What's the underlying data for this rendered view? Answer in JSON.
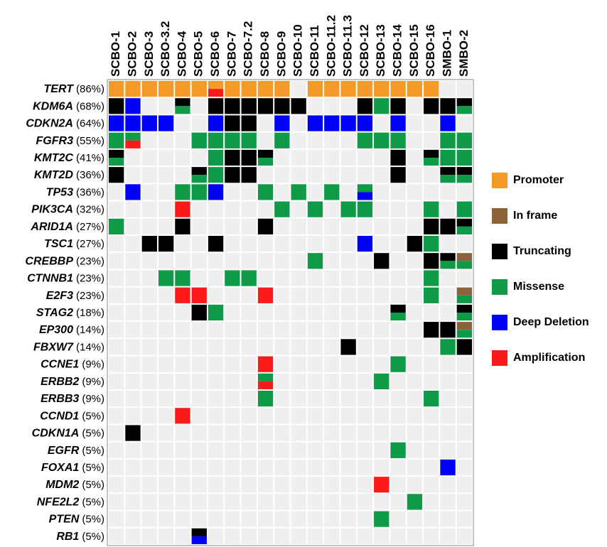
{
  "chart_data": {
    "type": "oncoprint",
    "samples": [
      "SCBO-1",
      "SCBO-2",
      "SCBO-3",
      "SCBO-3.2",
      "SCBO-4",
      "SCBO-5",
      "SCBO-6",
      "SCBO-7",
      "SCBO-7.2",
      "SCBO-8",
      "SCBO-9",
      "SCBO-10",
      "SCBO-11",
      "SCBO-11.2",
      "SCBO-11.3",
      "SCBO-12",
      "SCBO-13",
      "SCBO-14",
      "SCBO-15",
      "SCBO-16",
      "SMBO-1",
      "SMBO-2"
    ],
    "legend": [
      {
        "name": "Promoter",
        "color": "#f39b26"
      },
      {
        "name": "In frame",
        "color": "#8c6239"
      },
      {
        "name": "Truncating",
        "color": "#000000"
      },
      {
        "name": "Missense",
        "color": "#0f9a48"
      },
      {
        "name": "Deep Deletion",
        "color": "#0000ff"
      },
      {
        "name": "Amplification",
        "color": "#ff1a1a"
      }
    ],
    "genes": [
      {
        "name": "TERT",
        "percent": "(86%)",
        "cells": [
          [
            0
          ],
          [
            0
          ],
          [
            0
          ],
          [
            0
          ],
          [
            0
          ],
          [
            0
          ],
          [
            0,
            5
          ],
          [
            0
          ],
          [
            0
          ],
          [
            0
          ],
          [
            0
          ],
          [],
          [
            0
          ],
          [
            0
          ],
          [
            0
          ],
          [
            0
          ],
          [
            0
          ],
          [
            0
          ],
          [
            0
          ],
          [
            0
          ],
          [],
          []
        ]
      },
      {
        "name": "KDM6A",
        "percent": "(68%)",
        "cells": [
          [
            2
          ],
          [
            4
          ],
          [],
          [],
          [
            2,
            3
          ],
          [],
          [
            2
          ],
          [
            2
          ],
          [
            2
          ],
          [
            2
          ],
          [
            2
          ],
          [
            2
          ],
          [],
          [],
          [],
          [
            2
          ],
          [
            3
          ],
          [
            2
          ],
          [],
          [
            2
          ],
          [
            2
          ],
          [
            2,
            3
          ]
        ]
      },
      {
        "name": "CDKN2A",
        "percent": "(64%)",
        "cells": [
          [
            4
          ],
          [
            4
          ],
          [
            4
          ],
          [
            4
          ],
          [],
          [],
          [
            4
          ],
          [
            2
          ],
          [
            2
          ],
          [],
          [
            4
          ],
          [],
          [
            4
          ],
          [
            4
          ],
          [
            4
          ],
          [
            4
          ],
          [],
          [
            4
          ],
          [],
          [],
          [
            4
          ],
          []
        ]
      },
      {
        "name": "FGFR3",
        "percent": "(55%)",
        "cells": [
          [
            3
          ],
          [
            3,
            5
          ],
          [],
          [],
          [],
          [
            3
          ],
          [
            3
          ],
          [
            3
          ],
          [
            3
          ],
          [],
          [
            3
          ],
          [],
          [],
          [],
          [],
          [
            3
          ],
          [
            3
          ],
          [
            3
          ],
          [],
          [],
          [
            3
          ],
          [
            3
          ]
        ]
      },
      {
        "name": "KMT2C",
        "percent": "(41%)",
        "cells": [
          [
            2,
            3
          ],
          [],
          [],
          [],
          [],
          [],
          [
            3
          ],
          [
            2
          ],
          [
            2
          ],
          [
            2,
            3
          ],
          [],
          [],
          [],
          [],
          [],
          [],
          [],
          [
            2
          ],
          [],
          [
            2,
            3
          ],
          [
            3
          ],
          [
            3
          ]
        ]
      },
      {
        "name": "KMT2D",
        "percent": "(36%)",
        "cells": [
          [
            2
          ],
          [],
          [],
          [],
          [],
          [
            2,
            3
          ],
          [
            3
          ],
          [
            2
          ],
          [
            2
          ],
          [],
          [],
          [],
          [],
          [],
          [],
          [],
          [],
          [
            2
          ],
          [],
          [],
          [
            2,
            3
          ],
          [
            2,
            3
          ]
        ]
      },
      {
        "name": "TP53",
        "percent": "(36%)",
        "cells": [
          [],
          [
            4
          ],
          [],
          [],
          [
            3
          ],
          [
            3
          ],
          [
            4
          ],
          [],
          [],
          [
            3
          ],
          [],
          [
            3
          ],
          [],
          [
            3
          ],
          [],
          [
            3,
            4
          ],
          [],
          [],
          [],
          [],
          [],
          []
        ]
      },
      {
        "name": "PIK3CA",
        "percent": "(32%)",
        "cells": [
          [],
          [],
          [],
          [],
          [
            5
          ],
          [],
          [],
          [],
          [],
          [],
          [
            3
          ],
          [],
          [
            3
          ],
          [],
          [
            3
          ],
          [
            3
          ],
          [],
          [],
          [],
          [
            3
          ],
          [],
          [
            3
          ]
        ]
      },
      {
        "name": "ARID1A",
        "percent": "(27%)",
        "cells": [
          [
            3
          ],
          [],
          [],
          [],
          [
            2
          ],
          [],
          [],
          [],
          [],
          [
            2
          ],
          [],
          [],
          [],
          [],
          [],
          [],
          [],
          [],
          [],
          [
            2
          ],
          [
            2
          ],
          [
            2,
            3
          ]
        ]
      },
      {
        "name": "TSC1",
        "percent": "(27%)",
        "cells": [
          [],
          [],
          [
            2
          ],
          [
            2
          ],
          [],
          [],
          [
            2
          ],
          [],
          [],
          [],
          [],
          [],
          [],
          [],
          [],
          [
            4
          ],
          [],
          [],
          [
            2
          ],
          [
            3
          ],
          [],
          []
        ]
      },
      {
        "name": "CREBBP",
        "percent": "(23%)",
        "cells": [
          [],
          [],
          [],
          [],
          [],
          [],
          [],
          [],
          [],
          [],
          [],
          [],
          [
            3
          ],
          [],
          [],
          [],
          [
            2
          ],
          [],
          [],
          [
            2
          ],
          [
            2,
            3
          ],
          [
            1,
            3
          ]
        ]
      },
      {
        "name": "CTNNB1",
        "percent": "(23%)",
        "cells": [
          [],
          [],
          [],
          [
            3
          ],
          [
            3
          ],
          [],
          [],
          [
            3
          ],
          [
            3
          ],
          [],
          [],
          [],
          [],
          [],
          [],
          [],
          [],
          [],
          [],
          [
            3
          ],
          [],
          []
        ]
      },
      {
        "name": "E2F3",
        "percent": "(23%)",
        "cells": [
          [],
          [],
          [],
          [],
          [
            5
          ],
          [
            5
          ],
          [],
          [],
          [],
          [
            5
          ],
          [],
          [],
          [],
          [],
          [],
          [],
          [],
          [],
          [],
          [
            3
          ],
          [],
          [
            1,
            3
          ]
        ]
      },
      {
        "name": "STAG2",
        "percent": "(18%)",
        "cells": [
          [],
          [],
          [],
          [],
          [],
          [
            2
          ],
          [
            3
          ],
          [],
          [],
          [],
          [],
          [],
          [],
          [],
          [],
          [],
          [],
          [
            2,
            3
          ],
          [],
          [],
          [],
          [
            2,
            3
          ]
        ]
      },
      {
        "name": "EP300",
        "percent": "(14%)",
        "cells": [
          [],
          [],
          [],
          [],
          [],
          [],
          [],
          [],
          [],
          [],
          [],
          [],
          [],
          [],
          [],
          [],
          [],
          [],
          [],
          [
            2
          ],
          [
            2
          ],
          [
            1,
            3
          ]
        ]
      },
      {
        "name": "FBXW7",
        "percent": "(14%)",
        "cells": [
          [],
          [],
          [],
          [],
          [],
          [],
          [],
          [],
          [],
          [],
          [],
          [],
          [],
          [],
          [
            2
          ],
          [],
          [],
          [],
          [],
          [],
          [
            3
          ],
          [
            2
          ]
        ]
      },
      {
        "name": "CCNE1",
        "percent": "(9%)",
        "cells": [
          [],
          [],
          [],
          [],
          [],
          [],
          [],
          [],
          [],
          [
            5
          ],
          [],
          [],
          [],
          [],
          [],
          [],
          [],
          [
            3
          ],
          [],
          [],
          [],
          []
        ]
      },
      {
        "name": "ERBB2",
        "percent": "(9%)",
        "cells": [
          [],
          [],
          [],
          [],
          [],
          [],
          [],
          [],
          [],
          [
            3,
            5
          ],
          [],
          [],
          [],
          [],
          [],
          [],
          [
            3
          ],
          [],
          [],
          [],
          [],
          []
        ]
      },
      {
        "name": "ERBB3",
        "percent": "(9%)",
        "cells": [
          [],
          [],
          [],
          [],
          [],
          [],
          [],
          [],
          [],
          [
            3
          ],
          [],
          [],
          [],
          [],
          [],
          [],
          [],
          [],
          [],
          [
            3
          ],
          [],
          []
        ]
      },
      {
        "name": "CCND1",
        "percent": "(5%)",
        "cells": [
          [],
          [],
          [],
          [],
          [
            5
          ],
          [],
          [],
          [],
          [],
          [],
          [],
          [],
          [],
          [],
          [],
          [],
          [],
          [],
          [],
          [],
          [],
          []
        ]
      },
      {
        "name": "CDKN1A",
        "percent": "(5%)",
        "cells": [
          [],
          [
            2
          ],
          [],
          [],
          [],
          [],
          [],
          [],
          [],
          [],
          [],
          [],
          [],
          [],
          [],
          [],
          [],
          [],
          [],
          [],
          [],
          []
        ]
      },
      {
        "name": "EGFR",
        "percent": "(5%)",
        "cells": [
          [],
          [],
          [],
          [],
          [],
          [],
          [],
          [],
          [],
          [],
          [],
          [],
          [],
          [],
          [],
          [],
          [],
          [
            3
          ],
          [],
          [],
          [],
          []
        ]
      },
      {
        "name": "FOXA1",
        "percent": "(5%)",
        "cells": [
          [],
          [],
          [],
          [],
          [],
          [],
          [],
          [],
          [],
          [],
          [],
          [],
          [],
          [],
          [],
          [],
          [],
          [],
          [],
          [],
          [
            4
          ],
          []
        ]
      },
      {
        "name": "MDM2",
        "percent": "(5%)",
        "cells": [
          [],
          [],
          [],
          [],
          [],
          [],
          [],
          [],
          [],
          [],
          [],
          [],
          [],
          [],
          [],
          [],
          [
            5
          ],
          [],
          [],
          [],
          [],
          []
        ]
      },
      {
        "name": "NFE2L2",
        "percent": "(5%)",
        "cells": [
          [],
          [],
          [],
          [],
          [],
          [],
          [],
          [],
          [],
          [],
          [],
          [],
          [],
          [],
          [],
          [],
          [],
          [],
          [
            3
          ],
          [],
          [],
          []
        ]
      },
      {
        "name": "PTEN",
        "percent": "(5%)",
        "cells": [
          [],
          [],
          [],
          [],
          [],
          [],
          [],
          [],
          [],
          [],
          [],
          [],
          [],
          [],
          [],
          [],
          [
            3
          ],
          [],
          [],
          [],
          [],
          []
        ]
      },
      {
        "name": "RB1",
        "percent": "(5%)",
        "cells": [
          [],
          [],
          [],
          [],
          [],
          [
            2,
            4
          ],
          [],
          [],
          [],
          [],
          [],
          [],
          [],
          [],
          [],
          [],
          [],
          [],
          [],
          [],
          [],
          []
        ]
      }
    ]
  }
}
